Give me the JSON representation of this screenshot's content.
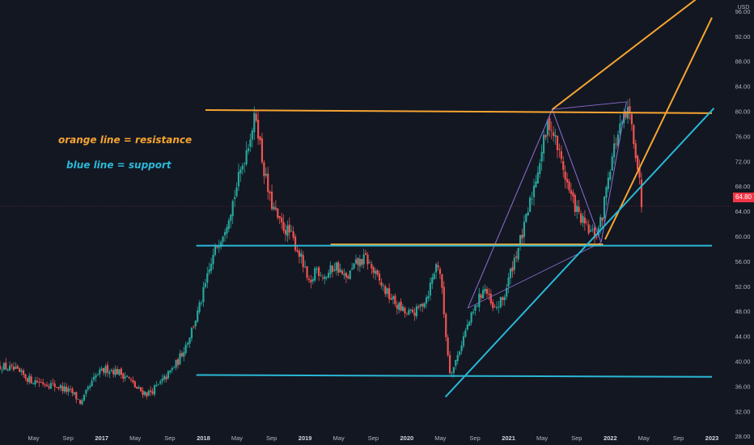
{
  "chart_data": {
    "type": "candlestick",
    "currency": "USD",
    "x_tick_labels": [
      "May",
      "Sep",
      "2017",
      "May",
      "Sep",
      "2018",
      "May",
      "Sep",
      "2019",
      "May",
      "Sep",
      "2020",
      "May",
      "Sep",
      "2021",
      "May",
      "Sep",
      "2022",
      "May",
      "Sep",
      "2023"
    ],
    "y_ticks": [
      28,
      32,
      36,
      40,
      44,
      48,
      52,
      56,
      60,
      64,
      68,
      72,
      76,
      80,
      84,
      88,
      92,
      96
    ],
    "y_tick_labels": [
      "28.00",
      "32.00",
      "36.00",
      "40.00",
      "44.00",
      "48.00",
      "52.00",
      "56.00",
      "60.00",
      "64.00",
      "68.00",
      "72.00",
      "76.00",
      "80.00",
      "84.00",
      "88.00",
      "92.00",
      "96.00"
    ],
    "ylim": [
      26.6,
      97.8
    ],
    "last_price": 64.8,
    "last_price_label": "64.80",
    "annotations": {
      "resistance": "orange line = resistance",
      "support": "blue line = support"
    },
    "colors": {
      "background": "#131722",
      "up": "#26a69a",
      "down": "#ef5350",
      "resistance": "#f7a531",
      "support": "#2ab8d6",
      "pattern": "#8e6fd6",
      "axis_text": "#b2b5be",
      "price_badge": "#f23645"
    },
    "price_path": [
      [
        2016.02,
        39.2
      ],
      [
        2016.15,
        38.5
      ],
      [
        2016.3,
        37.0
      ],
      [
        2016.45,
        36.5
      ],
      [
        2016.6,
        35.8
      ],
      [
        2016.72,
        34.8
      ],
      [
        2016.8,
        33.2
      ],
      [
        2016.85,
        35.0
      ],
      [
        2016.95,
        37.8
      ],
      [
        2017.05,
        38.8
      ],
      [
        2017.15,
        38.4
      ],
      [
        2017.25,
        37.5
      ],
      [
        2017.35,
        35.5
      ],
      [
        2017.45,
        34.8
      ],
      [
        2017.55,
        36.0
      ],
      [
        2017.65,
        37.8
      ],
      [
        2017.75,
        40.0
      ],
      [
        2017.85,
        43.5
      ],
      [
        2017.95,
        48.0
      ],
      [
        2018.05,
        54.0
      ],
      [
        2018.12,
        58.0
      ],
      [
        2018.2,
        61.0
      ],
      [
        2018.28,
        65.0
      ],
      [
        2018.36,
        70.0
      ],
      [
        2018.44,
        75.0
      ],
      [
        2018.5,
        78.5
      ],
      [
        2018.52,
        79.2
      ],
      [
        2018.58,
        72.0
      ],
      [
        2018.65,
        66.0
      ],
      [
        2018.75,
        62.0
      ],
      [
        2018.85,
        60.5
      ],
      [
        2018.95,
        57.0
      ],
      [
        2019.05,
        51.5
      ],
      [
        2019.1,
        55.0
      ],
      [
        2019.2,
        53.5
      ],
      [
        2019.3,
        55.5
      ],
      [
        2019.4,
        53.0
      ],
      [
        2019.5,
        55.5
      ],
      [
        2019.6,
        56.5
      ],
      [
        2019.7,
        53.5
      ],
      [
        2019.8,
        51.0
      ],
      [
        2019.9,
        49.0
      ],
      [
        2020.0,
        47.5
      ],
      [
        2020.1,
        48.0
      ],
      [
        2020.2,
        50.5
      ],
      [
        2020.3,
        56.0
      ],
      [
        2020.33,
        54.0
      ],
      [
        2020.38,
        45.0
      ],
      [
        2020.42,
        38.5
      ],
      [
        2020.46,
        39.0
      ],
      [
        2020.52,
        42.0
      ],
      [
        2020.58,
        45.0
      ],
      [
        2020.66,
        48.0
      ],
      [
        2020.76,
        52.0
      ],
      [
        2020.85,
        48.0
      ],
      [
        2020.95,
        50.0
      ],
      [
        2021.05,
        56.0
      ],
      [
        2021.15,
        61.0
      ],
      [
        2021.25,
        68.0
      ],
      [
        2021.33,
        74.0
      ],
      [
        2021.4,
        78.5
      ],
      [
        2021.45,
        76.0
      ],
      [
        2021.52,
        72.0
      ],
      [
        2021.6,
        67.0
      ],
      [
        2021.7,
        63.0
      ],
      [
        2021.78,
        61.0
      ],
      [
        2021.86,
        60.0
      ],
      [
        2021.92,
        63.0
      ],
      [
        2021.98,
        70.0
      ],
      [
        2022.05,
        75.0
      ],
      [
        2022.12,
        78.0
      ],
      [
        2022.18,
        80.0
      ],
      [
        2022.23,
        76.0
      ],
      [
        2022.28,
        70.0
      ],
      [
        2022.31,
        64.8
      ]
    ],
    "trend_lines": [
      {
        "name": "resistance",
        "x1": 2018.02,
        "y1": 80.2,
        "x2": 2023.0,
        "y2": 79.7
      },
      {
        "name": "resistance",
        "x1": 2019.25,
        "y1": 58.7,
        "x2": 2021.93,
        "y2": 58.7
      },
      {
        "name": "resistance",
        "x1": 2021.43,
        "y1": 80.3,
        "x2": 2022.85,
        "y2": 98.0
      },
      {
        "name": "resistance",
        "x1": 2021.95,
        "y1": 59.5,
        "x2": 2023.0,
        "y2": 95.0
      },
      {
        "name": "support",
        "x1": 2017.93,
        "y1": 58.5,
        "x2": 2023.0,
        "y2": 58.5
      },
      {
        "name": "support",
        "x1": 2017.93,
        "y1": 37.8,
        "x2": 2023.0,
        "y2": 37.5
      },
      {
        "name": "support",
        "x1": 2020.38,
        "y1": 34.3,
        "x2": 2023.02,
        "y2": 80.5
      }
    ],
    "pattern_lines": [
      [
        2020.6,
        48.5
      ],
      [
        2021.43,
        80.3
      ],
      [
        2021.91,
        59.0
      ],
      [
        2022.16,
        81.5
      ]
    ]
  }
}
